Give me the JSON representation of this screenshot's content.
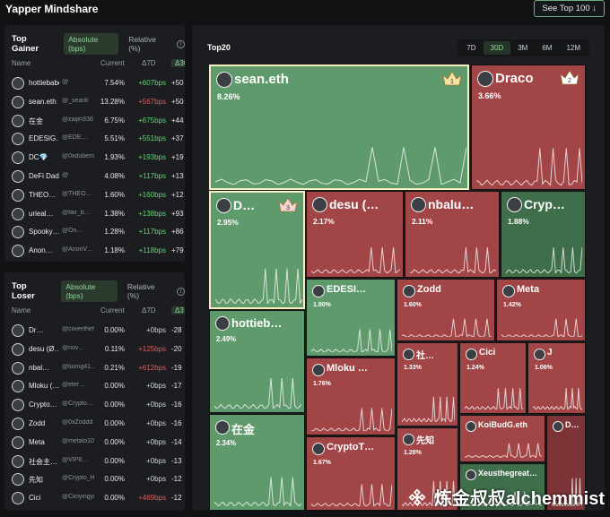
{
  "app": {
    "title": "Yapper Mindshare",
    "see_top_label": "See Top 100 ↓"
  },
  "gainer": {
    "title": "Top Gainer",
    "toggle_absolute": "Absolute (bps)",
    "toggle_relative": "Relative (%)",
    "columns": {
      "name": "Name",
      "current": "Current",
      "d7": "Δ7D",
      "d30": "Δ30"
    },
    "rows": [
      {
        "name": "hottiebabe…",
        "handle": "@",
        "current": "7.54%",
        "d7": "+607bps",
        "d7_dir": "pos",
        "d30": "+50"
      },
      {
        "name": "sean.eth",
        "handle": "@_seanli",
        "current": "13.28%",
        "d7": "+567bps",
        "d7_dir": "neg",
        "d30": "+50"
      },
      {
        "name": "在金",
        "handle": "@zaijin338191",
        "current": "6.75%",
        "d7": "+675bps",
        "d7_dir": "pos",
        "d30": "+44"
      },
      {
        "name": "EDESIG…",
        "handle": "@EDE…",
        "current": "5.51%",
        "d7": "+551bps",
        "d7_dir": "pos",
        "d30": "+37"
      },
      {
        "name": "DC💎",
        "handle": "@0xdubemm",
        "current": "1.93%",
        "d7": "+193bps",
        "d7_dir": "pos",
        "d30": "+19"
      },
      {
        "name": "DeFi Dad…",
        "handle": "@",
        "current": "4.08%",
        "d7": "+117bps",
        "d7_dir": "pos",
        "d30": "+13"
      },
      {
        "name": "THEO…",
        "handle": "@THEO…",
        "current": "1.60%",
        "d7": "+160bps",
        "d7_dir": "pos",
        "d30": "+12"
      },
      {
        "name": "urieal…",
        "handle": "@fair_b…",
        "current": "1.38%",
        "d7": "+138bps",
        "d7_dir": "pos",
        "d30": "+93"
      },
      {
        "name": "Spooky…",
        "handle": "@On…",
        "current": "1.28%",
        "d7": "+117bps",
        "d7_dir": "pos",
        "d30": "+86"
      },
      {
        "name": "Anon…",
        "handle": "@AnonV…",
        "current": "1.18%",
        "d7": "+118bps",
        "d7_dir": "pos",
        "d30": "+79"
      }
    ]
  },
  "loser": {
    "title": "Top Loser",
    "toggle_absolute": "Absolute (bps)",
    "toggle_relative": "Relative (%)",
    "columns": {
      "name": "Name",
      "current": "Current",
      "d7": "Δ7D",
      "d30": "Δ3"
    },
    "rows": [
      {
        "name": "Dr…",
        "handle": "@coverthefi…",
        "current": "0.00%",
        "d7": "+0bps",
        "d7_dir": "neu",
        "d30": "-28"
      },
      {
        "name": "desu (Ø…",
        "handle": "@nov…",
        "current": "0.11%",
        "d7": "+125bps",
        "d7_dir": "neg",
        "d30": "-20"
      },
      {
        "name": "nbal…",
        "handle": "@luong41…",
        "current": "0.21%",
        "d7": "+612bps",
        "d7_dir": "neg",
        "d30": "-19"
      },
      {
        "name": "Mloku (…",
        "handle": "@eter…",
        "current": "0.00%",
        "d7": "+0bps",
        "d7_dir": "neu",
        "d30": "-17"
      },
      {
        "name": "Crypto…",
        "handle": "@Crypto…",
        "current": "0.00%",
        "d7": "+0bps",
        "d7_dir": "neu",
        "d30": "-16"
      },
      {
        "name": "Zodd",
        "handle": "@0xZoddd",
        "current": "0.00%",
        "d7": "+0bps",
        "d7_dir": "neu",
        "d30": "-16"
      },
      {
        "name": "Meta",
        "handle": "@metalo102",
        "current": "0.00%",
        "d7": "+0bps",
        "d7_dir": "neu",
        "d30": "-14"
      },
      {
        "name": "社会主…",
        "handle": "@VIP8…",
        "current": "0.00%",
        "d7": "+0bps",
        "d7_dir": "neu",
        "d30": "-13"
      },
      {
        "name": "先知",
        "handle": "@Crypto_He",
        "current": "0.00%",
        "d7": "+0bps",
        "d7_dir": "neu",
        "d30": "-12"
      },
      {
        "name": "Cici",
        "handle": "@Ciciyingying",
        "current": "0.00%",
        "d7": "+469bps",
        "d7_dir": "neg",
        "d30": "-12"
      }
    ]
  },
  "main": {
    "title": "Top20",
    "ranges": [
      "7D",
      "30D",
      "3M",
      "6M",
      "12M"
    ],
    "active_range": "30D",
    "tiles": [
      {
        "id": "sean",
        "name": "sean.eth",
        "pct": "8.26%",
        "tone": "g",
        "rank": "1",
        "highlight": true
      },
      {
        "id": "draco",
        "name": "Draco",
        "pct": "3.66%",
        "tone": "r",
        "rank": "2"
      },
      {
        "id": "d3",
        "name": "D…",
        "pct": "2.95%",
        "tone": "g",
        "rank": "3",
        "highlight": true
      },
      {
        "id": "desu",
        "name": "desu (…",
        "pct": "2.17%",
        "tone": "r"
      },
      {
        "id": "nbalu",
        "name": "nbalu…",
        "pct": "2.11%",
        "tone": "r"
      },
      {
        "id": "cryp",
        "name": "Cryp…",
        "pct": "1.88%",
        "tone": "gd"
      },
      {
        "id": "edesi",
        "name": "EDESI…",
        "pct": "1.80%",
        "tone": "g"
      },
      {
        "id": "zodd",
        "name": "Zodd",
        "pct": "1.60%",
        "tone": "r"
      },
      {
        "id": "meta",
        "name": "Meta",
        "pct": "1.42%",
        "tone": "r"
      },
      {
        "id": "hottie",
        "name": "hottieb…",
        "pct": "2.49%",
        "tone": "g"
      },
      {
        "id": "mloku",
        "name": "Mloku …",
        "pct": "1.76%",
        "tone": "r"
      },
      {
        "id": "she",
        "name": "社…",
        "pct": "1.33%",
        "tone": "r"
      },
      {
        "id": "cici",
        "name": "Cici",
        "pct": "1.24%",
        "tone": "r"
      },
      {
        "id": "j",
        "name": "J",
        "pct": "1.06%",
        "tone": "r"
      },
      {
        "id": "zaijin",
        "name": "在金",
        "pct": "2.34%",
        "tone": "g"
      },
      {
        "id": "cryptot",
        "name": "CryptoT…",
        "pct": "1.67%",
        "tone": "r"
      },
      {
        "id": "xianzhi",
        "name": "先知",
        "pct": "1.28%",
        "tone": "r"
      },
      {
        "id": "koibud",
        "name": "KoiBudG.eth",
        "pct": "",
        "tone": "r"
      },
      {
        "id": "dlast",
        "name": "D…",
        "pct": "",
        "tone": "rd"
      },
      {
        "id": "xeus",
        "name": "Xeusthegreat…",
        "pct": "",
        "tone": "gd"
      }
    ]
  },
  "watermark": {
    "text": "炼金叔叔alchemmist"
  }
}
